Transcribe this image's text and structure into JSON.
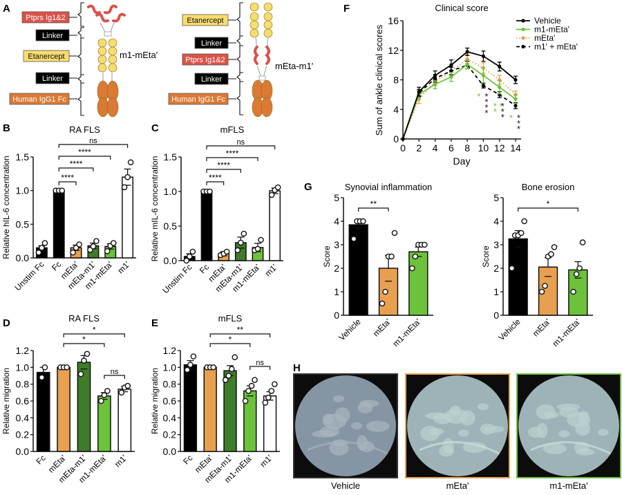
{
  "colors": {
    "black": "#000000",
    "orange": "#E8A050",
    "dark_green": "#3E7D2A",
    "light_green": "#6CC23A",
    "white": "#FFFFFF",
    "ptprs_red": "#D9534A",
    "etanercept_yellow": "#F7DC6F",
    "fc_orange": "#DB7A35",
    "linker_black": "#000000"
  },
  "panels": {
    "A": {
      "letter": "A",
      "constructs": [
        {
          "name": "m1-mEta'",
          "labels": [
            "Ptprs Ig1&2",
            "Linker",
            "Etanercept",
            "Linker",
            "Human IgG1 Fc"
          ]
        },
        {
          "name": "mEta-m1'",
          "labels": [
            "Etanercept",
            "Linker",
            "Ptprs Ig1&2",
            "Linker",
            "Human IgG1 Fc"
          ]
        }
      ]
    },
    "B": {
      "letter": "B"
    },
    "C": {
      "letter": "C"
    },
    "D": {
      "letter": "D"
    },
    "E": {
      "letter": "E"
    },
    "F": {
      "letter": "F"
    },
    "G": {
      "letter": "G"
    },
    "H": {
      "letter": "H",
      "images": [
        {
          "label": "Vehicle",
          "border": "#333333"
        },
        {
          "label": "mEta'",
          "border": "#E8A050"
        },
        {
          "label": "m1-mEta'",
          "border": "#6CC23A"
        }
      ]
    }
  },
  "chart_data": [
    {
      "panel": "B",
      "type": "bar",
      "title": "RA FLS",
      "ylabel": "Relative hIL-6 concentration",
      "xlabel": "",
      "ylim": [
        0,
        1.5
      ],
      "yticks": [
        "0.0",
        "0.5",
        "1.0",
        "1.5"
      ],
      "categories": [
        "Unstim Fc",
        "Fc",
        "mEta'",
        "mEta-m1'",
        "m1-mEta'",
        "m1'"
      ],
      "values": [
        0.15,
        1.0,
        0.15,
        0.18,
        0.17,
        1.2
      ],
      "errors": [
        0.03,
        0.0,
        0.04,
        0.04,
        0.04,
        0.12
      ],
      "points": [
        [
          0.08,
          0.15,
          0.22
        ],
        [
          1.0,
          1.0,
          1.0
        ],
        [
          0.08,
          0.15,
          0.2
        ],
        [
          0.12,
          0.17,
          0.25
        ],
        [
          0.1,
          0.18,
          0.22
        ],
        [
          1.05,
          1.2,
          1.42
        ]
      ],
      "bar_colors": [
        "#000000",
        "#000000",
        "#E8A050",
        "#3E7D2A",
        "#6CC23A",
        "#FFFFFF"
      ],
      "significance": [
        {
          "from": "Fc",
          "to": "mEta'",
          "label": "****"
        },
        {
          "from": "Fc",
          "to": "mEta-m1'",
          "label": "****"
        },
        {
          "from": "Fc",
          "to": "m1-mEta'",
          "label": "****"
        },
        {
          "from": "Fc",
          "to": "m1'",
          "label": "ns"
        }
      ]
    },
    {
      "panel": "C",
      "type": "bar",
      "title": "mFLS",
      "ylabel": "Relative mIL-6 concentration",
      "xlabel": "",
      "ylim": [
        0,
        1.5
      ],
      "yticks": [
        "0.0",
        "0.5",
        "1.0",
        "1.5"
      ],
      "categories": [
        "Unstim Fc",
        "Fc",
        "mEta'",
        "mEta-m1'",
        "m1-mEta'",
        "m1'"
      ],
      "values": [
        0.06,
        1.0,
        0.1,
        0.26,
        0.19,
        1.01
      ],
      "errors": [
        0.04,
        0.0,
        0.03,
        0.08,
        0.06,
        0.04
      ],
      "points": [
        [
          0.0,
          0.06,
          0.13
        ],
        [
          1.0,
          1.0,
          1.0
        ],
        [
          0.08,
          0.1,
          0.13
        ],
        [
          0.15,
          0.26,
          0.39
        ],
        [
          0.15,
          0.17,
          0.3
        ],
        [
          0.95,
          1.02,
          1.06
        ]
      ],
      "bar_colors": [
        "#000000",
        "#000000",
        "#E8A050",
        "#3E7D2A",
        "#6CC23A",
        "#FFFFFF"
      ],
      "significance": [
        {
          "from": "Fc",
          "to": "mEta'",
          "label": "****"
        },
        {
          "from": "Fc",
          "to": "mEta-m1'",
          "label": "****"
        },
        {
          "from": "Fc",
          "to": "m1-mEta'",
          "label": "****"
        },
        {
          "from": "Fc",
          "to": "m1'",
          "label": "ns"
        }
      ]
    },
    {
      "panel": "D",
      "type": "bar",
      "title": "RA FLS",
      "ylabel": "Relative migration",
      "xlabel": "",
      "ylim": [
        0,
        1.2
      ],
      "yticks": [
        "0.0",
        "0.2",
        "0.4",
        "0.6",
        "0.8",
        "1.0",
        "1.2"
      ],
      "categories": [
        "Fc",
        "mEta'",
        "mEta-m1'",
        "m1-mEta'",
        "m1'"
      ],
      "values": [
        0.94,
        1.0,
        1.06,
        0.66,
        0.74
      ],
      "errors": [
        0.06,
        0.0,
        0.08,
        0.04,
        0.03
      ],
      "points": [
        [
          0.88,
          1.0
        ],
        [
          1.0,
          1.0,
          1.0
        ],
        [
          0.92,
          1.08,
          1.16
        ],
        [
          0.6,
          0.67,
          0.72
        ],
        [
          0.7,
          0.76,
          0.78
        ]
      ],
      "bar_colors": [
        "#000000",
        "#E8A050",
        "#3E7D2A",
        "#6CC23A",
        "#FFFFFF"
      ],
      "significance": [
        {
          "from": "mEta'",
          "to": "m1-mEta'",
          "label": "*"
        },
        {
          "from": "mEta'",
          "to": "m1'",
          "label": "*"
        },
        {
          "from": "m1-mEta'",
          "to": "m1'",
          "label": "ns"
        }
      ]
    },
    {
      "panel": "E",
      "type": "bar",
      "title": "mFLS",
      "ylabel": "Relative migration",
      "xlabel": "",
      "ylim": [
        0,
        1.2
      ],
      "yticks": [
        "0.0",
        "0.2",
        "0.4",
        "0.6",
        "0.8",
        "1.0",
        "1.2"
      ],
      "categories": [
        "Fc",
        "mEta'",
        "mEta-m1'",
        "m1-mEta'",
        "m1'"
      ],
      "values": [
        1.03,
        1.0,
        0.96,
        0.72,
        0.66
      ],
      "errors": [
        0.05,
        0.0,
        0.06,
        0.06,
        0.05
      ],
      "points": [
        [
          0.97,
          1.03,
          1.13
        ],
        [
          1.0,
          1.0,
          1.0
        ],
        [
          0.85,
          0.9,
          0.98,
          1.12
        ],
        [
          0.6,
          0.72,
          0.78,
          0.85
        ],
        [
          0.58,
          0.64,
          0.72,
          0.8
        ]
      ],
      "bar_colors": [
        "#000000",
        "#E8A050",
        "#3E7D2A",
        "#6CC23A",
        "#FFFFFF"
      ],
      "significance": [
        {
          "from": "mEta'",
          "to": "m1-mEta'",
          "label": "*"
        },
        {
          "from": "mEta'",
          "to": "m1'",
          "label": "**"
        },
        {
          "from": "m1-mEta'",
          "to": "m1'",
          "label": "ns"
        }
      ]
    },
    {
      "panel": "F",
      "type": "line",
      "title": "Clinical score",
      "xlabel": "Day",
      "ylabel": "Sum of ankle clinical scores",
      "xlim": [
        0,
        14
      ],
      "ylim": [
        0,
        16
      ],
      "xticks": [
        "0",
        "2",
        "4",
        "6",
        "8",
        "10",
        "12",
        "14"
      ],
      "yticks": [
        "0",
        "4",
        "8",
        "12",
        "16"
      ],
      "x": [
        0,
        2,
        4,
        6,
        8,
        10,
        12,
        14
      ],
      "legend_position": "upper right",
      "series": [
        {
          "name": "Vehicle",
          "color": "#000000",
          "style": "solid",
          "values": [
            0,
            6.4,
            8.6,
            10.0,
            11.8,
            11.2,
            9.8,
            8.0
          ],
          "errors": [
            0,
            0.6,
            0.6,
            0.7,
            0.5,
            0.7,
            0.6,
            0.5
          ]
        },
        {
          "name": "m1-mEta'",
          "color": "#6CC23A",
          "style": "solid",
          "values": [
            0,
            6.0,
            7.4,
            8.4,
            10.1,
            8.6,
            7.0,
            5.4
          ],
          "errors": [
            0,
            0.6,
            0.6,
            0.6,
            0.6,
            1.0,
            0.9,
            0.6
          ]
        },
        {
          "name": "mEta'",
          "color": "#E8A050",
          "style": "dotted",
          "values": [
            0,
            5.4,
            7.8,
            9.2,
            10.8,
            9.6,
            8.0,
            6.0
          ],
          "errors": [
            0,
            0.6,
            0.6,
            0.6,
            0.6,
            0.7,
            0.6,
            0.5
          ]
        },
        {
          "name": "m1' + mEta'",
          "color": "#000000",
          "style": "dashed",
          "values": [
            0,
            6.2,
            8.2,
            9.2,
            10.0,
            7.2,
            6.0,
            4.5
          ],
          "errors": [
            0,
            0.5,
            0.5,
            0.5,
            0.5,
            0.3,
            0.4,
            0.4
          ]
        }
      ],
      "annotations": [
        {
          "x": 10,
          "green": "*",
          "black": "****"
        },
        {
          "x": 12,
          "green": "**",
          "black": "***"
        },
        {
          "x": 14,
          "green": "*",
          "black": "***"
        }
      ]
    },
    {
      "panel": "G1",
      "type": "bar",
      "title": "Synovial inflammation",
      "ylabel": "Score",
      "xlabel": "",
      "ylim": [
        0,
        5
      ],
      "yticks": [
        "0",
        "1",
        "2",
        "3",
        "4",
        "5"
      ],
      "categories": [
        "Vehicle",
        "mEta'",
        "m1-mEta'"
      ],
      "values": [
        3.85,
        2.0,
        2.7
      ],
      "errors": [
        0.15,
        0.55,
        0.2
      ],
      "points": [
        [
          3.25,
          4.0,
          4.0,
          4.0
        ],
        [
          0.5,
          1.0,
          2.5,
          2.5,
          3.5
        ],
        [
          2.0,
          2.5,
          3.0,
          3.0,
          3.0
        ]
      ],
      "bar_colors": [
        "#000000",
        "#E8A050",
        "#6CC23A"
      ],
      "significance": [
        {
          "from": "Vehicle",
          "to": "mEta'",
          "label": "**"
        }
      ]
    },
    {
      "panel": "G2",
      "type": "bar",
      "title": "Bone erosion",
      "ylabel": "Score",
      "xlabel": "",
      "ylim": [
        0,
        5
      ],
      "yticks": [
        "0",
        "1",
        "2",
        "3",
        "4",
        "5"
      ],
      "categories": [
        "Vehicle",
        "mEta'",
        "m1-mEta'"
      ],
      "values": [
        3.25,
        2.05,
        1.93
      ],
      "errors": [
        0.35,
        0.4,
        0.35
      ],
      "points": [
        [
          2.0,
          3.4,
          3.4,
          3.5,
          4.0
        ],
        [
          1.0,
          1.25,
          2.5,
          2.6,
          2.9
        ],
        [
          1.0,
          1.75,
          2.0,
          3.1
        ]
      ],
      "bar_colors": [
        "#000000",
        "#E8A050",
        "#6CC23A"
      ],
      "significance": [
        {
          "from": "Vehicle",
          "to": "m1-mEta'",
          "label": "*"
        }
      ]
    }
  ]
}
